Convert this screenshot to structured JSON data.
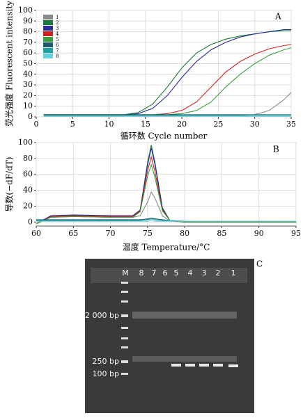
{
  "chart_data": [
    {
      "type": "line",
      "label": "A",
      "xlabel": "循环数 Cycle number",
      "ylabel": "荧光强度 Fluorescent intensity",
      "xlim": [
        0,
        35
      ],
      "xticks": [
        0,
        5,
        10,
        15,
        20,
        25,
        30,
        35
      ],
      "ylim": [
        0,
        100
      ],
      "yticks": [
        0,
        10,
        20,
        30,
        40,
        50,
        60,
        70,
        80,
        90,
        100
      ],
      "grid": true,
      "legend": "upper left",
      "x": [
        1,
        5,
        10,
        12,
        14,
        16,
        18,
        20,
        22,
        24,
        26,
        28,
        30,
        32,
        34,
        35
      ],
      "series": [
        {
          "name": "1",
          "color": "#8a8a8a",
          "values": [
            1,
            1,
            1,
            1,
            1,
            1,
            1,
            1,
            1,
            1,
            1,
            1,
            2,
            6,
            16,
            23
          ]
        },
        {
          "name": "2",
          "color": "#1a7a3a",
          "values": [
            2,
            2,
            2,
            2,
            4,
            12,
            28,
            46,
            60,
            68,
            73,
            76,
            78,
            80,
            81,
            81
          ]
        },
        {
          "name": "3",
          "color": "#2a2a9a",
          "values": [
            2,
            2,
            2,
            2,
            3,
            8,
            20,
            37,
            52,
            63,
            70,
            75,
            78,
            80,
            82,
            82
          ]
        },
        {
          "name": "4",
          "color": "#d02020",
          "values": [
            2,
            2,
            2,
            2,
            2,
            2,
            3,
            6,
            14,
            28,
            42,
            52,
            59,
            64,
            67,
            68
          ]
        },
        {
          "name": "5",
          "color": "#3aa040",
          "values": [
            2,
            2,
            2,
            2,
            2,
            2,
            2,
            3,
            6,
            14,
            28,
            40,
            50,
            58,
            63,
            65
          ]
        },
        {
          "name": "6",
          "color": "#1a5a6a",
          "values": [
            2,
            2,
            2,
            2,
            2,
            2,
            2,
            2,
            2,
            2,
            2,
            2,
            2,
            2,
            2,
            2
          ]
        },
        {
          "name": "7",
          "color": "#20a0a0",
          "values": [
            1.5,
            1.5,
            1.5,
            1.5,
            1.5,
            1.5,
            1.5,
            1.5,
            1.5,
            1.5,
            1.5,
            1.5,
            1.5,
            1.5,
            1.5,
            1.5
          ]
        },
        {
          "name": "8",
          "color": "#60d0e0",
          "values": [
            0.5,
            0.5,
            0.5,
            0.5,
            0.5,
            0.5,
            0.5,
            0.5,
            0.5,
            0.5,
            0.5,
            0.5,
            0.5,
            0.5,
            0.5,
            0.5
          ]
        }
      ]
    },
    {
      "type": "line",
      "label": "B",
      "xlabel": "温度 Temperature/°C",
      "ylabel": "导数(−dF/dT)",
      "xlim": [
        60,
        95
      ],
      "xticks": [
        60,
        65,
        70,
        75,
        80,
        85,
        90,
        95
      ],
      "ylim": [
        -5,
        100
      ],
      "yticks": [
        0,
        20,
        40,
        60,
        80,
        100
      ],
      "grid": true,
      "x": [
        60,
        62,
        65,
        70,
        73,
        74,
        75,
        75.5,
        76,
        77,
        78,
        80,
        85,
        95
      ],
      "series": [
        {
          "color": "#8a8a8a",
          "values": [
            -2,
            6,
            7,
            6,
            6,
            8,
            25,
            38,
            30,
            8,
            1,
            0,
            0,
            0
          ]
        },
        {
          "color": "#1a7a3a",
          "values": [
            -2,
            7,
            8,
            7,
            7,
            15,
            75,
            97,
            75,
            18,
            2,
            0,
            0,
            0
          ]
        },
        {
          "color": "#2a2a9a",
          "values": [
            -2,
            8,
            9,
            8,
            8,
            15,
            72,
            93,
            72,
            17,
            2,
            0,
            0,
            0
          ]
        },
        {
          "color": "#d02020",
          "values": [
            -2,
            7,
            8,
            7,
            7,
            14,
            65,
            82,
            63,
            15,
            2,
            0,
            0,
            0
          ]
        },
        {
          "color": "#3aa040",
          "values": [
            -2,
            6,
            7,
            6,
            6,
            13,
            58,
            72,
            56,
            14,
            2,
            0,
            0,
            0
          ]
        },
        {
          "color": "#1a5a6a",
          "values": [
            3,
            3,
            3,
            3,
            3,
            3,
            4,
            5,
            4,
            3,
            2,
            1,
            1,
            1
          ]
        },
        {
          "color": "#20a0a0",
          "values": [
            2,
            2,
            2,
            2,
            2,
            2,
            3,
            4,
            3,
            2,
            2,
            1,
            1,
            1
          ]
        },
        {
          "color": "#60d0e0",
          "values": [
            1,
            1,
            1,
            1,
            1,
            1,
            1,
            2,
            1,
            1,
            1,
            1,
            1,
            1
          ]
        }
      ]
    }
  ],
  "gel": {
    "label": "C",
    "lanes": [
      "M",
      "8",
      "7",
      "6",
      "5",
      "4",
      "3",
      "2",
      "1"
    ],
    "markers": [
      "2 000 bp",
      "250 bp",
      "100 bp"
    ]
  }
}
